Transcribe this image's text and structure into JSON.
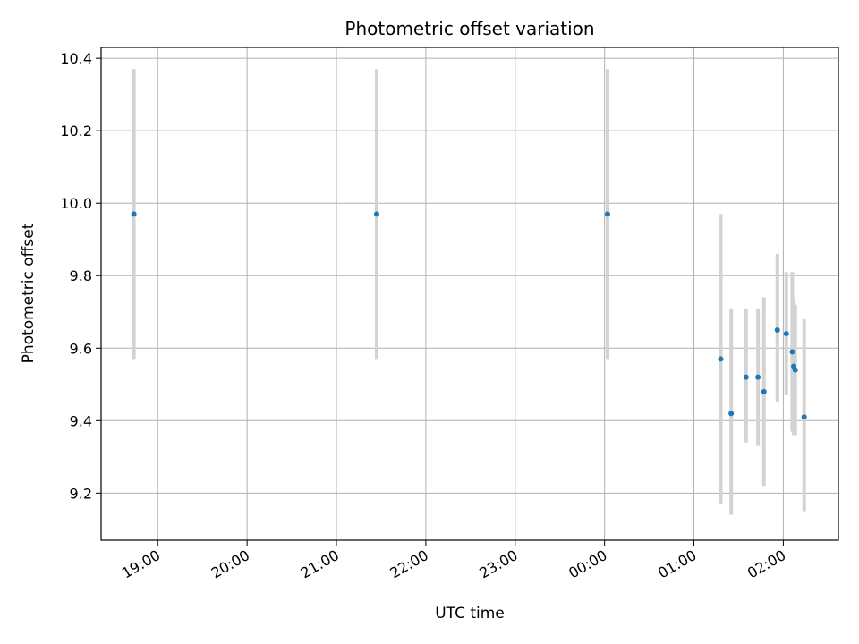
{
  "chart_data": {
    "type": "scatter",
    "title": "Photometric offset variation",
    "xlabel": "UTC time",
    "ylabel": "Photometric offset",
    "x_unit": "UTC",
    "xlim": [
      "18:22",
      "02:37"
    ],
    "ylim": [
      9.07,
      10.43
    ],
    "xticks": [
      "19:00",
      "20:00",
      "21:00",
      "22:00",
      "23:00",
      "00:00",
      "01:00",
      "02:00"
    ],
    "yticks": [
      9.2,
      9.4,
      9.6,
      9.8,
      10.0,
      10.2,
      10.4
    ],
    "grid": true,
    "marker_color": "#1f77b4",
    "errorbar_color": "#d3d3d3",
    "series": [
      {
        "points": [
          {
            "x": "18:44",
            "y": 9.97,
            "y_low": 9.57,
            "y_high": 10.37
          },
          {
            "x": "21:27",
            "y": 9.97,
            "y_low": 9.57,
            "y_high": 10.37
          },
          {
            "x": "00:02",
            "y": 9.97,
            "y_low": 9.57,
            "y_high": 10.37
          },
          {
            "x": "01:18",
            "y": 9.57,
            "y_low": 9.17,
            "y_high": 9.97
          },
          {
            "x": "01:25",
            "y": 9.42,
            "y_low": 9.14,
            "y_high": 9.71
          },
          {
            "x": "01:35",
            "y": 9.52,
            "y_low": 9.34,
            "y_high": 9.71
          },
          {
            "x": "01:43",
            "y": 9.52,
            "y_low": 9.33,
            "y_high": 9.71
          },
          {
            "x": "01:47",
            "y": 9.48,
            "y_low": 9.22,
            "y_high": 9.74
          },
          {
            "x": "01:56",
            "y": 9.65,
            "y_low": 9.45,
            "y_high": 9.86
          },
          {
            "x": "02:02",
            "y": 9.64,
            "y_low": 9.47,
            "y_high": 9.81
          },
          {
            "x": "02:06",
            "y": 9.59,
            "y_low": 9.37,
            "y_high": 9.81
          },
          {
            "x": "02:07",
            "y": 9.55,
            "y_low": 9.36,
            "y_high": 9.74
          },
          {
            "x": "02:08",
            "y": 9.54,
            "y_low": 9.36,
            "y_high": 9.72
          },
          {
            "x": "02:14",
            "y": 9.41,
            "y_low": 9.15,
            "y_high": 9.68
          }
        ]
      }
    ]
  }
}
